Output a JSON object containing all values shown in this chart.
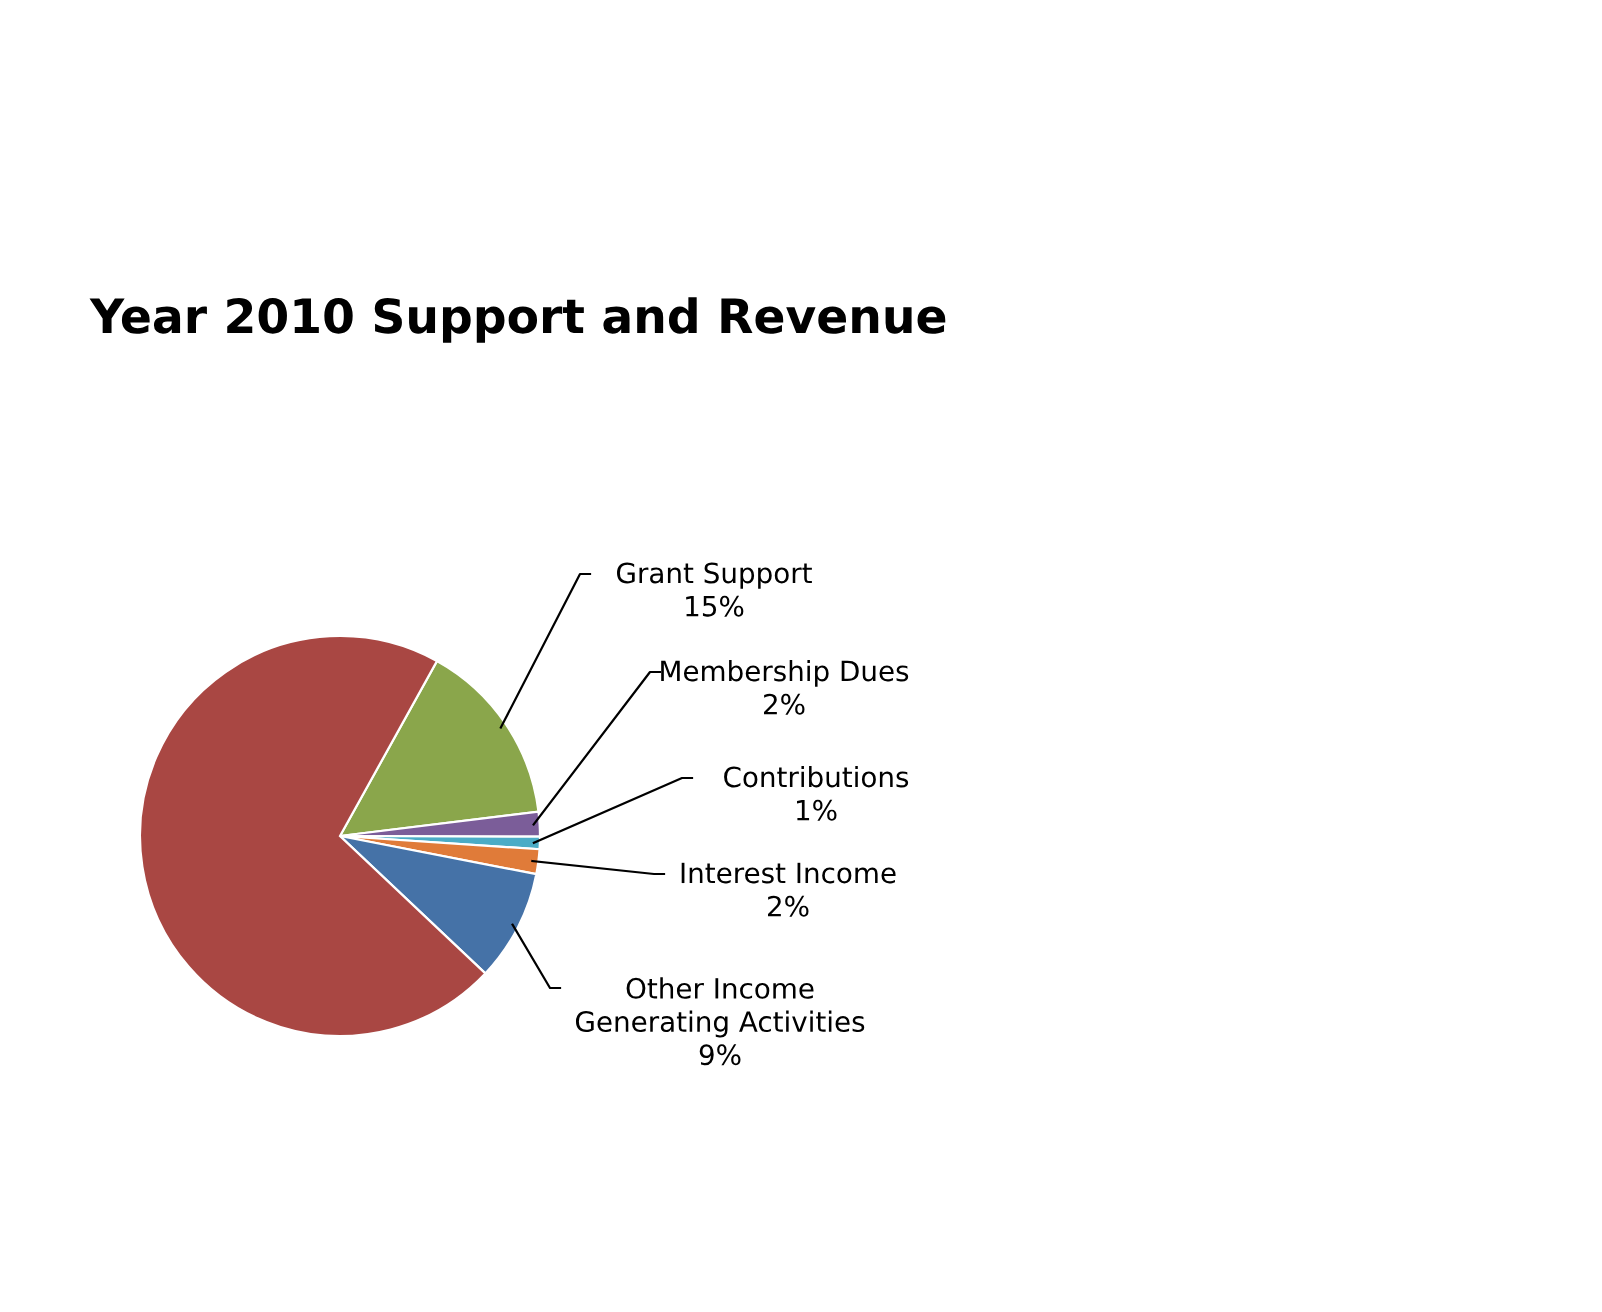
{
  "chart_data": {
    "type": "pie",
    "title": "Year 2010 Support and Revenue",
    "categories": [
      "Grant Support",
      "Membership Dues",
      "Contributions",
      "Interest Income",
      "Other Income\nGenerating Activities",
      null
    ],
    "values": [
      15,
      2,
      1,
      2,
      9,
      71
    ],
    "value_labels": [
      "15%",
      "2%",
      "1%",
      "2%",
      "9%",
      null
    ],
    "colors": [
      "#8aa64b",
      "#7b5d99",
      "#4bacc6",
      "#e07b39",
      "#4572a7",
      "#a94743"
    ]
  }
}
